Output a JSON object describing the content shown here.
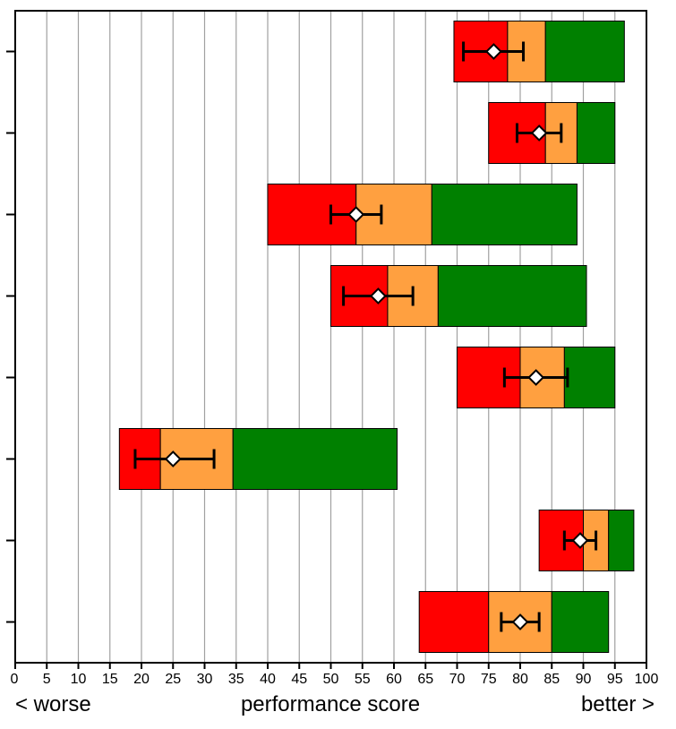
{
  "chart_data": {
    "type": "bar",
    "orientation": "horizontal",
    "subtype": "bullet-range-with-point-and-error-bar",
    "xlim": [
      0,
      100
    ],
    "x_ticks": [
      0,
      5,
      10,
      15,
      20,
      25,
      30,
      35,
      40,
      45,
      50,
      55,
      60,
      65,
      70,
      75,
      80,
      85,
      90,
      95,
      100
    ],
    "grid": "vertical",
    "xlabel": "performance score",
    "xlabel_left": "< worse",
    "xlabel_right": "better >",
    "y_tick_labels": [],
    "colors": {
      "red": "#ff0000",
      "orange": "#ffa040",
      "green": "#008000",
      "grid": "#a0a0a0",
      "marker_fill": "#ffffff",
      "outline": "#000000"
    },
    "rows": [
      {
        "red": [
          69.5,
          78.0
        ],
        "orange": [
          78.0,
          84.0
        ],
        "green": [
          84.0,
          96.5
        ],
        "point": 75.8,
        "error": [
          71.0,
          80.5
        ]
      },
      {
        "red": [
          75.0,
          84.0
        ],
        "orange": [
          84.0,
          89.0
        ],
        "green": [
          89.0,
          95.0
        ],
        "point": 83.0,
        "error": [
          79.5,
          86.5
        ]
      },
      {
        "red": [
          40.0,
          54.0
        ],
        "orange": [
          54.0,
          66.0
        ],
        "green": [
          66.0,
          89.0
        ],
        "point": 54.0,
        "error": [
          50.0,
          58.0
        ]
      },
      {
        "red": [
          50.0,
          59.0
        ],
        "orange": [
          59.0,
          67.0
        ],
        "green": [
          67.0,
          90.5
        ],
        "point": 57.5,
        "error": [
          52.0,
          63.0
        ]
      },
      {
        "red": [
          70.0,
          80.0
        ],
        "orange": [
          80.0,
          87.0
        ],
        "green": [
          87.0,
          95.0
        ],
        "point": 82.5,
        "error": [
          77.5,
          87.5
        ]
      },
      {
        "red": [
          16.5,
          23.0
        ],
        "orange": [
          23.0,
          34.5
        ],
        "green": [
          34.5,
          60.5
        ],
        "point": 25.0,
        "error": [
          19.0,
          31.5
        ]
      },
      {
        "red": [
          83.0,
          90.0
        ],
        "orange": [
          90.0,
          94.0
        ],
        "green": [
          94.0,
          98.0
        ],
        "point": 89.5,
        "error": [
          87.0,
          92.0
        ]
      },
      {
        "red": [
          64.0,
          75.0
        ],
        "orange": [
          75.0,
          85.0
        ],
        "green": [
          85.0,
          94.0
        ],
        "point": 80.0,
        "error": [
          77.0,
          83.0
        ]
      }
    ]
  }
}
